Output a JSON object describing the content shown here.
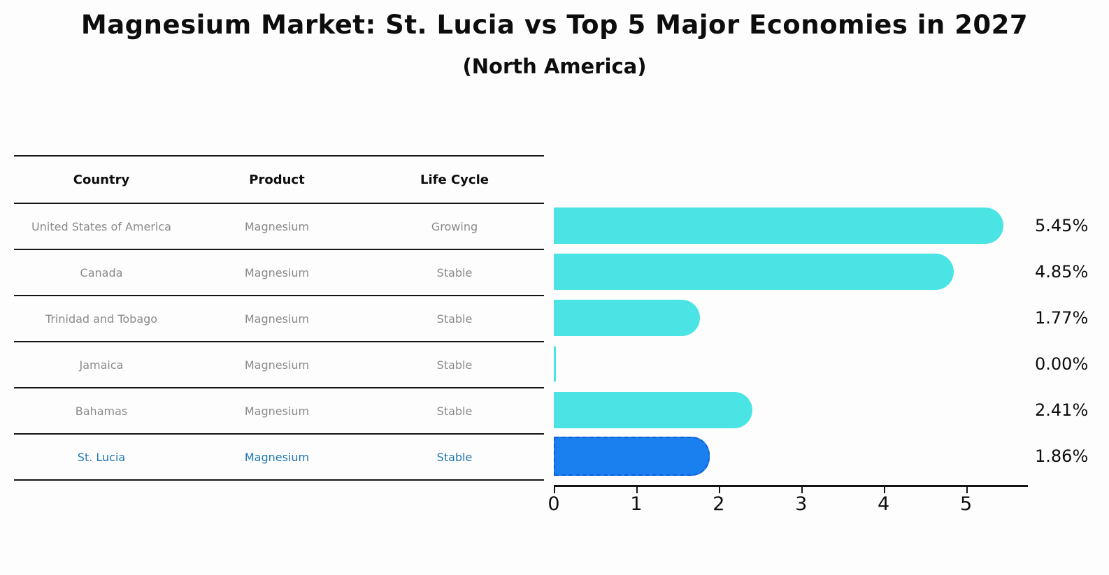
{
  "title": "Magnesium Market: St. Lucia vs Top 5 Major Economies in 2027",
  "subtitle": "(North America)",
  "table": {
    "headers": [
      "Country",
      "Product",
      "Life Cycle"
    ],
    "rows": [
      {
        "country": "United States of America",
        "product": "Magnesium",
        "life_cycle": "Growing",
        "highlight": false
      },
      {
        "country": "Canada",
        "product": "Magnesium",
        "life_cycle": "Stable",
        "highlight": false
      },
      {
        "country": "Trinidad and Tobago",
        "product": "Magnesium",
        "life_cycle": "Stable",
        "highlight": false
      },
      {
        "country": "Jamaica",
        "product": "Magnesium",
        "life_cycle": "Stable",
        "highlight": false
      },
      {
        "country": "Bahamas",
        "product": "Magnesium",
        "life_cycle": "Stable",
        "highlight": false
      },
      {
        "country": "St. Lucia",
        "product": "Magnesium",
        "life_cycle": "Stable",
        "highlight": true
      }
    ]
  },
  "chart_data": {
    "type": "bar",
    "orientation": "horizontal",
    "title": "Magnesium Market: St. Lucia vs Top 5 Major Economies in 2027",
    "subtitle": "(North America)",
    "categories": [
      "United States of America",
      "Canada",
      "Trinidad and Tobago",
      "Jamaica",
      "Bahamas",
      "St. Lucia"
    ],
    "values": [
      5.45,
      4.85,
      1.77,
      0.0,
      2.41,
      1.86
    ],
    "value_labels": [
      "5.45%",
      "4.85%",
      "1.77%",
      "0.00%",
      "2.41%",
      "1.86%"
    ],
    "x_ticks": [
      "0",
      "1",
      "2",
      "3",
      "4",
      "5"
    ],
    "xlim": [
      0,
      5.75
    ],
    "grid": false,
    "legend": false,
    "bar_color": "#4BE4E4",
    "highlight_bar_color": "#1A80F0",
    "highlight_border_color": "#0E5FD8",
    "highlight_index": 5,
    "highlight_text_color": "#1f77b4",
    "text_color": "#0d0d0d",
    "muted_text_color": "#8a8a8a"
  }
}
